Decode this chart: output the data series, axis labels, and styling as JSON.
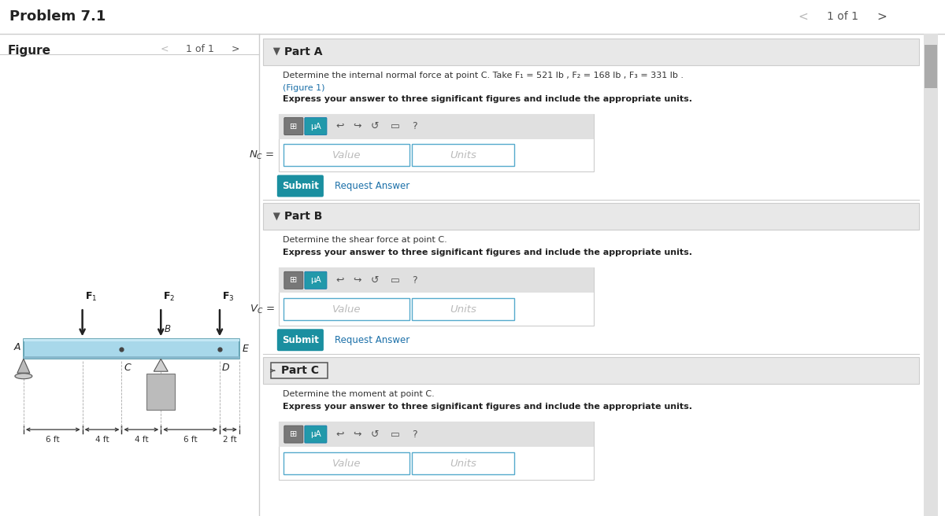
{
  "title": "Problem 7.1",
  "nav_text": "1 of 1",
  "figure_label": "Figure",
  "figure_nav": "1 of 1",
  "bg_color": "#f0f0f0",
  "white": "#ffffff",
  "panel_bg": "#e8e8e8",
  "teal_btn": "#1a8fa0",
  "blue_link": "#1a6fa8",
  "border_color": "#cccccc",
  "part_c_border": "#555555",
  "beam_color": "#a8d8ea",
  "beam_stroke": "#5599aa",
  "arrow_color": "#222222",
  "parts": [
    {
      "label": "Part A",
      "description": "Determine the internal normal force at point C. Take F₁ = 521 lb , F₂ = 168 lb , F₃ = 331 lb .",
      "figure_link": "(Figure 1)",
      "bold_text": "Express your answer to three significant figures and include the appropriate units.",
      "variable": "N_C"
    },
    {
      "label": "Part B",
      "description": "Determine the shear force at point C.",
      "figure_link": null,
      "bold_text": "Express your answer to three significant figures and include the appropriate units.",
      "variable": "V_C"
    },
    {
      "label": "Part C",
      "description": "Determine the moment at point C.",
      "figure_link": null,
      "bold_text": "Express your answer to three significant figures and include the appropriate units.",
      "variable": null
    }
  ]
}
